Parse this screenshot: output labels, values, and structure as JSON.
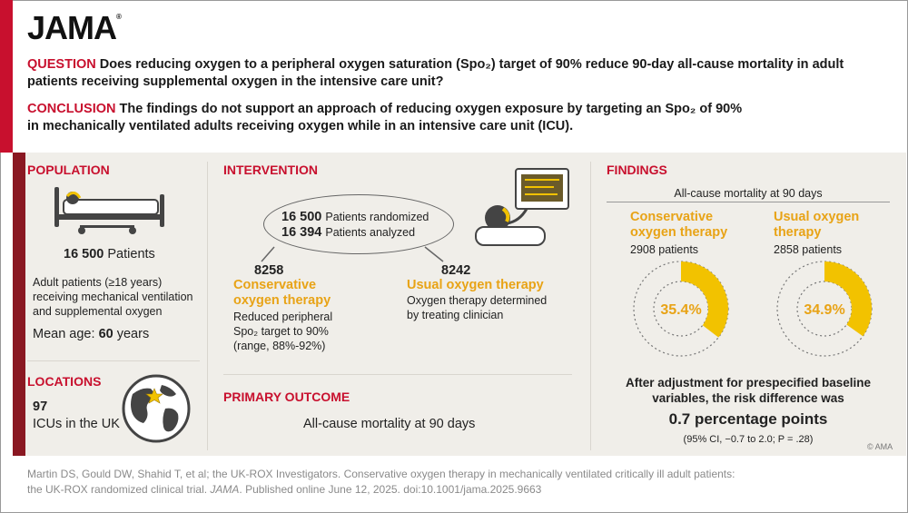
{
  "logo": "JAMA",
  "question": {
    "label": "QUESTION",
    "text": "Does reducing oxygen to a peripheral oxygen saturation (Spo₂) target of 90% reduce 90-day all-cause mortality in adult patients receiving supplemental oxygen in the intensive care unit?"
  },
  "conclusion": {
    "label": "CONCLUSION",
    "text_line1": "The findings do not support an approach of reducing oxygen exposure by targeting an Spo₂ of 90%",
    "text_line2": "in mechanically ventilated adults receiving oxygen while in an intensive care unit (ICU)."
  },
  "population": {
    "title": "POPULATION",
    "count": "16 500",
    "count_label": "Patients",
    "desc_lines": [
      "Adult patients (≥18 years)",
      "receiving mechanical ventilation",
      "and supplemental oxygen"
    ],
    "mean_age_label": "Mean age:",
    "mean_age_value": "60",
    "mean_age_unit": "years"
  },
  "locations": {
    "title": "LOCATIONS",
    "count": "97",
    "label": "ICUs in the UK"
  },
  "intervention": {
    "title": "INTERVENTION",
    "randomized_n": "16 500",
    "randomized_label": "Patients randomized",
    "analyzed_n": "16 394",
    "analyzed_label": "Patients analyzed",
    "left": {
      "n": "8258",
      "name_lines": [
        "Conservative",
        "oxygen therapy"
      ],
      "desc_lines": [
        "Reduced peripheral",
        "Spo₂ target to 90%",
        "(range, 88%-92%)"
      ]
    },
    "right": {
      "n": "8242",
      "name": "Usual oxygen therapy",
      "desc_lines": [
        "Oxygen therapy determined",
        "by treating clinician"
      ]
    }
  },
  "primary_outcome": {
    "title": "PRIMARY OUTCOME",
    "text": "All-cause mortality at 90 days"
  },
  "findings": {
    "title": "FINDINGS",
    "subtitle": "All-cause mortality at 90 days",
    "groups": [
      {
        "name_lines": [
          "Conservative",
          "oxygen therapy"
        ],
        "patients": "2908 patients",
        "pct_label": "35.4%",
        "pct": 35.4
      },
      {
        "name_lines": [
          "Usual oxygen",
          "therapy"
        ],
        "patients": "2858 patients",
        "pct_label": "34.9%",
        "pct": 34.9
      }
    ],
    "adjust_lines": [
      "After adjustment for prespecified baseline",
      "variables, the risk difference was"
    ],
    "risk_diff": "0.7 percentage points",
    "ci": "(95% CI, −0.7 to 2.0; P = .28)"
  },
  "copyright": "© AMA",
  "citation": {
    "line1": "Martin DS, Gould DW, Shahid T, et al; the UK-ROX Investigators. Conservative oxygen therapy in mechanically ventilated critically ill adult patients:",
    "line2_a": "the UK-ROX randomized clinical trial. ",
    "line2_journal": "JAMA",
    "line2_b": ". Published online June 12, 2025. doi:10.1001/jama.2025.9663"
  },
  "colors": {
    "accent_red": "#c8102e",
    "dark_red": "#8a1822",
    "gold": "#f2c200",
    "orange_text": "#e8a316",
    "panel_bg": "#f0eee9"
  }
}
